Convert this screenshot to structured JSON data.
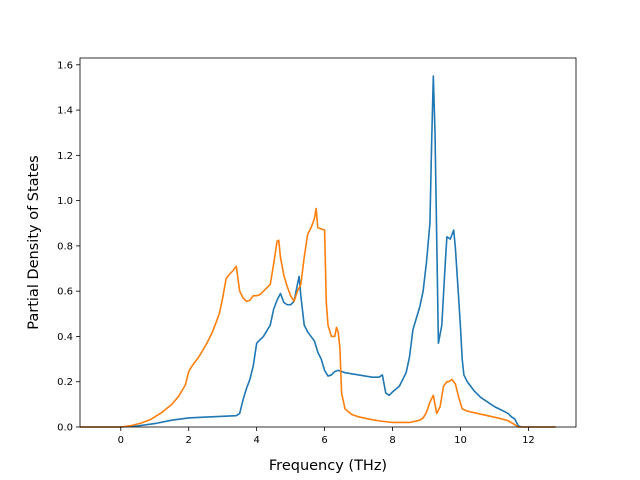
{
  "chart_data": {
    "type": "line",
    "title": "",
    "xlabel": "Frequency (THz)",
    "ylabel": "Partial Density of States",
    "xlim": [
      -1.2,
      13.4
    ],
    "ylim": [
      0,
      1.63
    ],
    "grid": false,
    "legend": "none",
    "xticks": [
      0,
      2,
      4,
      6,
      8,
      10,
      12
    ],
    "yticks": [
      0.0,
      0.2,
      0.4,
      0.6,
      0.8,
      1.0,
      1.2,
      1.4,
      1.6
    ],
    "xtick_labels": [
      "0",
      "2",
      "4",
      "6",
      "8",
      "10",
      "12"
    ],
    "ytick_labels": [
      "0.0",
      "0.2",
      "0.4",
      "0.6",
      "0.8",
      "1.0",
      "1.2",
      "1.4",
      "1.6"
    ],
    "series": [
      {
        "color": "#1f77b4",
        "points": [
          [
            -1.2,
            0
          ],
          [
            0,
            0
          ],
          [
            0.5,
            0.005
          ],
          [
            1.0,
            0.015
          ],
          [
            1.5,
            0.03
          ],
          [
            2.0,
            0.04
          ],
          [
            2.5,
            0.044
          ],
          [
            3.0,
            0.047
          ],
          [
            3.4,
            0.05
          ],
          [
            3.5,
            0.06
          ],
          [
            3.6,
            0.12
          ],
          [
            3.7,
            0.17
          ],
          [
            3.8,
            0.21
          ],
          [
            3.9,
            0.27
          ],
          [
            4.0,
            0.37
          ],
          [
            4.2,
            0.4
          ],
          [
            4.4,
            0.45
          ],
          [
            4.5,
            0.52
          ],
          [
            4.6,
            0.56
          ],
          [
            4.7,
            0.59
          ],
          [
            4.8,
            0.55
          ],
          [
            4.9,
            0.54
          ],
          [
            5.0,
            0.54
          ],
          [
            5.1,
            0.555
          ],
          [
            5.2,
            0.63
          ],
          [
            5.25,
            0.665
          ],
          [
            5.3,
            0.58
          ],
          [
            5.4,
            0.45
          ],
          [
            5.5,
            0.42
          ],
          [
            5.6,
            0.4
          ],
          [
            5.7,
            0.38
          ],
          [
            5.8,
            0.33
          ],
          [
            5.9,
            0.3
          ],
          [
            6.0,
            0.25
          ],
          [
            6.1,
            0.225
          ],
          [
            6.2,
            0.23
          ],
          [
            6.3,
            0.245
          ],
          [
            6.4,
            0.25
          ],
          [
            6.6,
            0.24
          ],
          [
            6.8,
            0.235
          ],
          [
            7.0,
            0.23
          ],
          [
            7.2,
            0.225
          ],
          [
            7.4,
            0.22
          ],
          [
            7.6,
            0.22
          ],
          [
            7.7,
            0.23
          ],
          [
            7.8,
            0.15
          ],
          [
            7.9,
            0.14
          ],
          [
            8.0,
            0.155
          ],
          [
            8.2,
            0.18
          ],
          [
            8.4,
            0.24
          ],
          [
            8.5,
            0.31
          ],
          [
            8.6,
            0.43
          ],
          [
            8.8,
            0.53
          ],
          [
            8.9,
            0.6
          ],
          [
            9.0,
            0.73
          ],
          [
            9.1,
            0.9
          ],
          [
            9.15,
            1.25
          ],
          [
            9.2,
            1.55
          ],
          [
            9.25,
            1.3
          ],
          [
            9.35,
            0.37
          ],
          [
            9.45,
            0.45
          ],
          [
            9.55,
            0.72
          ],
          [
            9.6,
            0.84
          ],
          [
            9.7,
            0.83
          ],
          [
            9.8,
            0.87
          ],
          [
            9.85,
            0.79
          ],
          [
            9.95,
            0.56
          ],
          [
            10.0,
            0.44
          ],
          [
            10.05,
            0.3
          ],
          [
            10.1,
            0.23
          ],
          [
            10.2,
            0.2
          ],
          [
            10.4,
            0.16
          ],
          [
            10.6,
            0.13
          ],
          [
            10.8,
            0.11
          ],
          [
            11.0,
            0.09
          ],
          [
            11.2,
            0.075
          ],
          [
            11.4,
            0.06
          ],
          [
            11.5,
            0.045
          ],
          [
            11.6,
            0.035
          ],
          [
            11.7,
            0.005
          ],
          [
            11.8,
            0
          ],
          [
            12.8,
            0
          ]
        ]
      },
      {
        "color": "#ff7f0e",
        "points": [
          [
            -1.2,
            0
          ],
          [
            0,
            0
          ],
          [
            0.3,
            0.006
          ],
          [
            0.6,
            0.017
          ],
          [
            0.9,
            0.035
          ],
          [
            1.2,
            0.063
          ],
          [
            1.5,
            0.1
          ],
          [
            1.7,
            0.135
          ],
          [
            1.9,
            0.185
          ],
          [
            2.0,
            0.245
          ],
          [
            2.1,
            0.27
          ],
          [
            2.3,
            0.31
          ],
          [
            2.5,
            0.36
          ],
          [
            2.7,
            0.42
          ],
          [
            2.9,
            0.5
          ],
          [
            3.0,
            0.57
          ],
          [
            3.1,
            0.655
          ],
          [
            3.2,
            0.675
          ],
          [
            3.3,
            0.69
          ],
          [
            3.4,
            0.71
          ],
          [
            3.5,
            0.6
          ],
          [
            3.6,
            0.57
          ],
          [
            3.7,
            0.555
          ],
          [
            3.8,
            0.56
          ],
          [
            3.9,
            0.58
          ],
          [
            4.0,
            0.58
          ],
          [
            4.1,
            0.585
          ],
          [
            4.2,
            0.6
          ],
          [
            4.4,
            0.63
          ],
          [
            4.5,
            0.72
          ],
          [
            4.6,
            0.82
          ],
          [
            4.65,
            0.825
          ],
          [
            4.7,
            0.75
          ],
          [
            4.8,
            0.67
          ],
          [
            4.9,
            0.62
          ],
          [
            5.0,
            0.58
          ],
          [
            5.1,
            0.555
          ],
          [
            5.2,
            0.6
          ],
          [
            5.3,
            0.63
          ],
          [
            5.4,
            0.75
          ],
          [
            5.5,
            0.85
          ],
          [
            5.6,
            0.88
          ],
          [
            5.7,
            0.92
          ],
          [
            5.75,
            0.965
          ],
          [
            5.8,
            0.88
          ],
          [
            6.0,
            0.87
          ],
          [
            6.05,
            0.55
          ],
          [
            6.1,
            0.45
          ],
          [
            6.2,
            0.4
          ],
          [
            6.3,
            0.4
          ],
          [
            6.35,
            0.44
          ],
          [
            6.4,
            0.42
          ],
          [
            6.45,
            0.35
          ],
          [
            6.5,
            0.15
          ],
          [
            6.6,
            0.08
          ],
          [
            6.8,
            0.055
          ],
          [
            7.0,
            0.045
          ],
          [
            7.3,
            0.035
          ],
          [
            7.6,
            0.027
          ],
          [
            8.0,
            0.02
          ],
          [
            8.5,
            0.02
          ],
          [
            8.8,
            0.03
          ],
          [
            8.9,
            0.04
          ],
          [
            9.0,
            0.065
          ],
          [
            9.1,
            0.11
          ],
          [
            9.2,
            0.14
          ],
          [
            9.3,
            0.06
          ],
          [
            9.4,
            0.09
          ],
          [
            9.5,
            0.18
          ],
          [
            9.6,
            0.2
          ],
          [
            9.65,
            0.2
          ],
          [
            9.75,
            0.21
          ],
          [
            9.85,
            0.19
          ],
          [
            9.95,
            0.13
          ],
          [
            10.05,
            0.08
          ],
          [
            10.2,
            0.07
          ],
          [
            10.5,
            0.06
          ],
          [
            10.8,
            0.05
          ],
          [
            11.1,
            0.04
          ],
          [
            11.4,
            0.028
          ],
          [
            11.6,
            0.01
          ],
          [
            11.7,
            0
          ],
          [
            12.8,
            0
          ]
        ]
      }
    ]
  }
}
